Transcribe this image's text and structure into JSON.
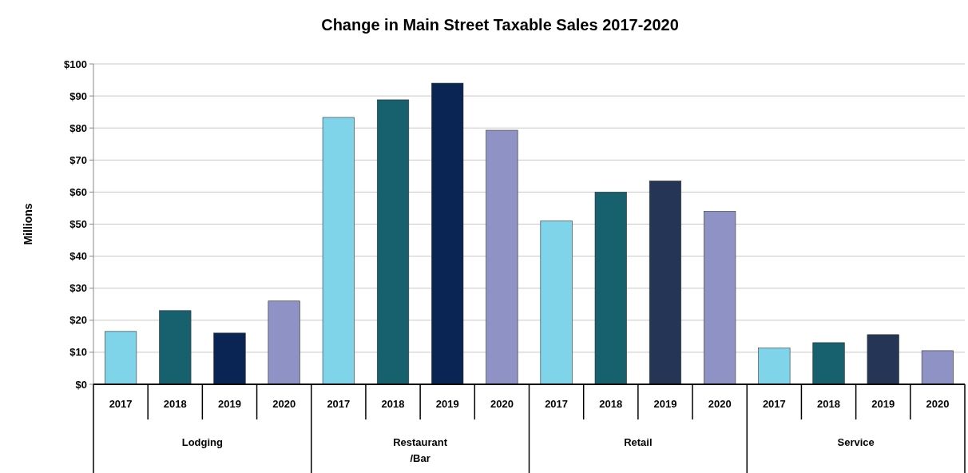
{
  "chart_data": {
    "type": "bar",
    "title": "Change in Main Street Taxable Sales 2017-2020",
    "ylabel": "Millions",
    "categories": [
      "2017",
      "2018",
      "2019",
      "2020",
      "2017",
      "2018",
      "2019",
      "2020",
      "2017",
      "2018",
      "2019",
      "2020",
      "2017",
      "2018",
      "2019",
      "2020"
    ],
    "values": [
      16.5,
      23,
      16,
      26,
      83.3,
      88.8,
      94,
      79.3,
      51,
      60,
      63.5,
      54,
      11.3,
      13,
      15.5,
      10.5
    ],
    "colors": [
      "#7fd4ea",
      "#17606e",
      "#0a2454",
      "#8e92c4",
      "#7fd4ea",
      "#17606e",
      "#0a2454",
      "#8e92c4",
      "#7fd4ea",
      "#17606e",
      "#243556",
      "#8e92c4",
      "#7fd4ea",
      "#17606e",
      "#243556",
      "#8e92c4"
    ],
    "ylim": [
      0,
      100
    ],
    "yticks": [
      {
        "value": 0,
        "label": "$0"
      },
      {
        "value": 10,
        "label": "$10"
      },
      {
        "value": 20,
        "label": "$20"
      },
      {
        "value": 30,
        "label": "$30"
      },
      {
        "value": 40,
        "label": "$40"
      },
      {
        "value": 50,
        "label": "$50"
      },
      {
        "value": 60,
        "label": "$60"
      },
      {
        "value": 70,
        "label": "$70"
      },
      {
        "value": 80,
        "label": "$80"
      },
      {
        "value": 90,
        "label": "$90"
      },
      {
        "value": 100,
        "label": "$100"
      }
    ],
    "grid": "y",
    "annotations": [
      "Lodging",
      "Restaurant\n/Bar",
      "Retail",
      "Service"
    ]
  }
}
